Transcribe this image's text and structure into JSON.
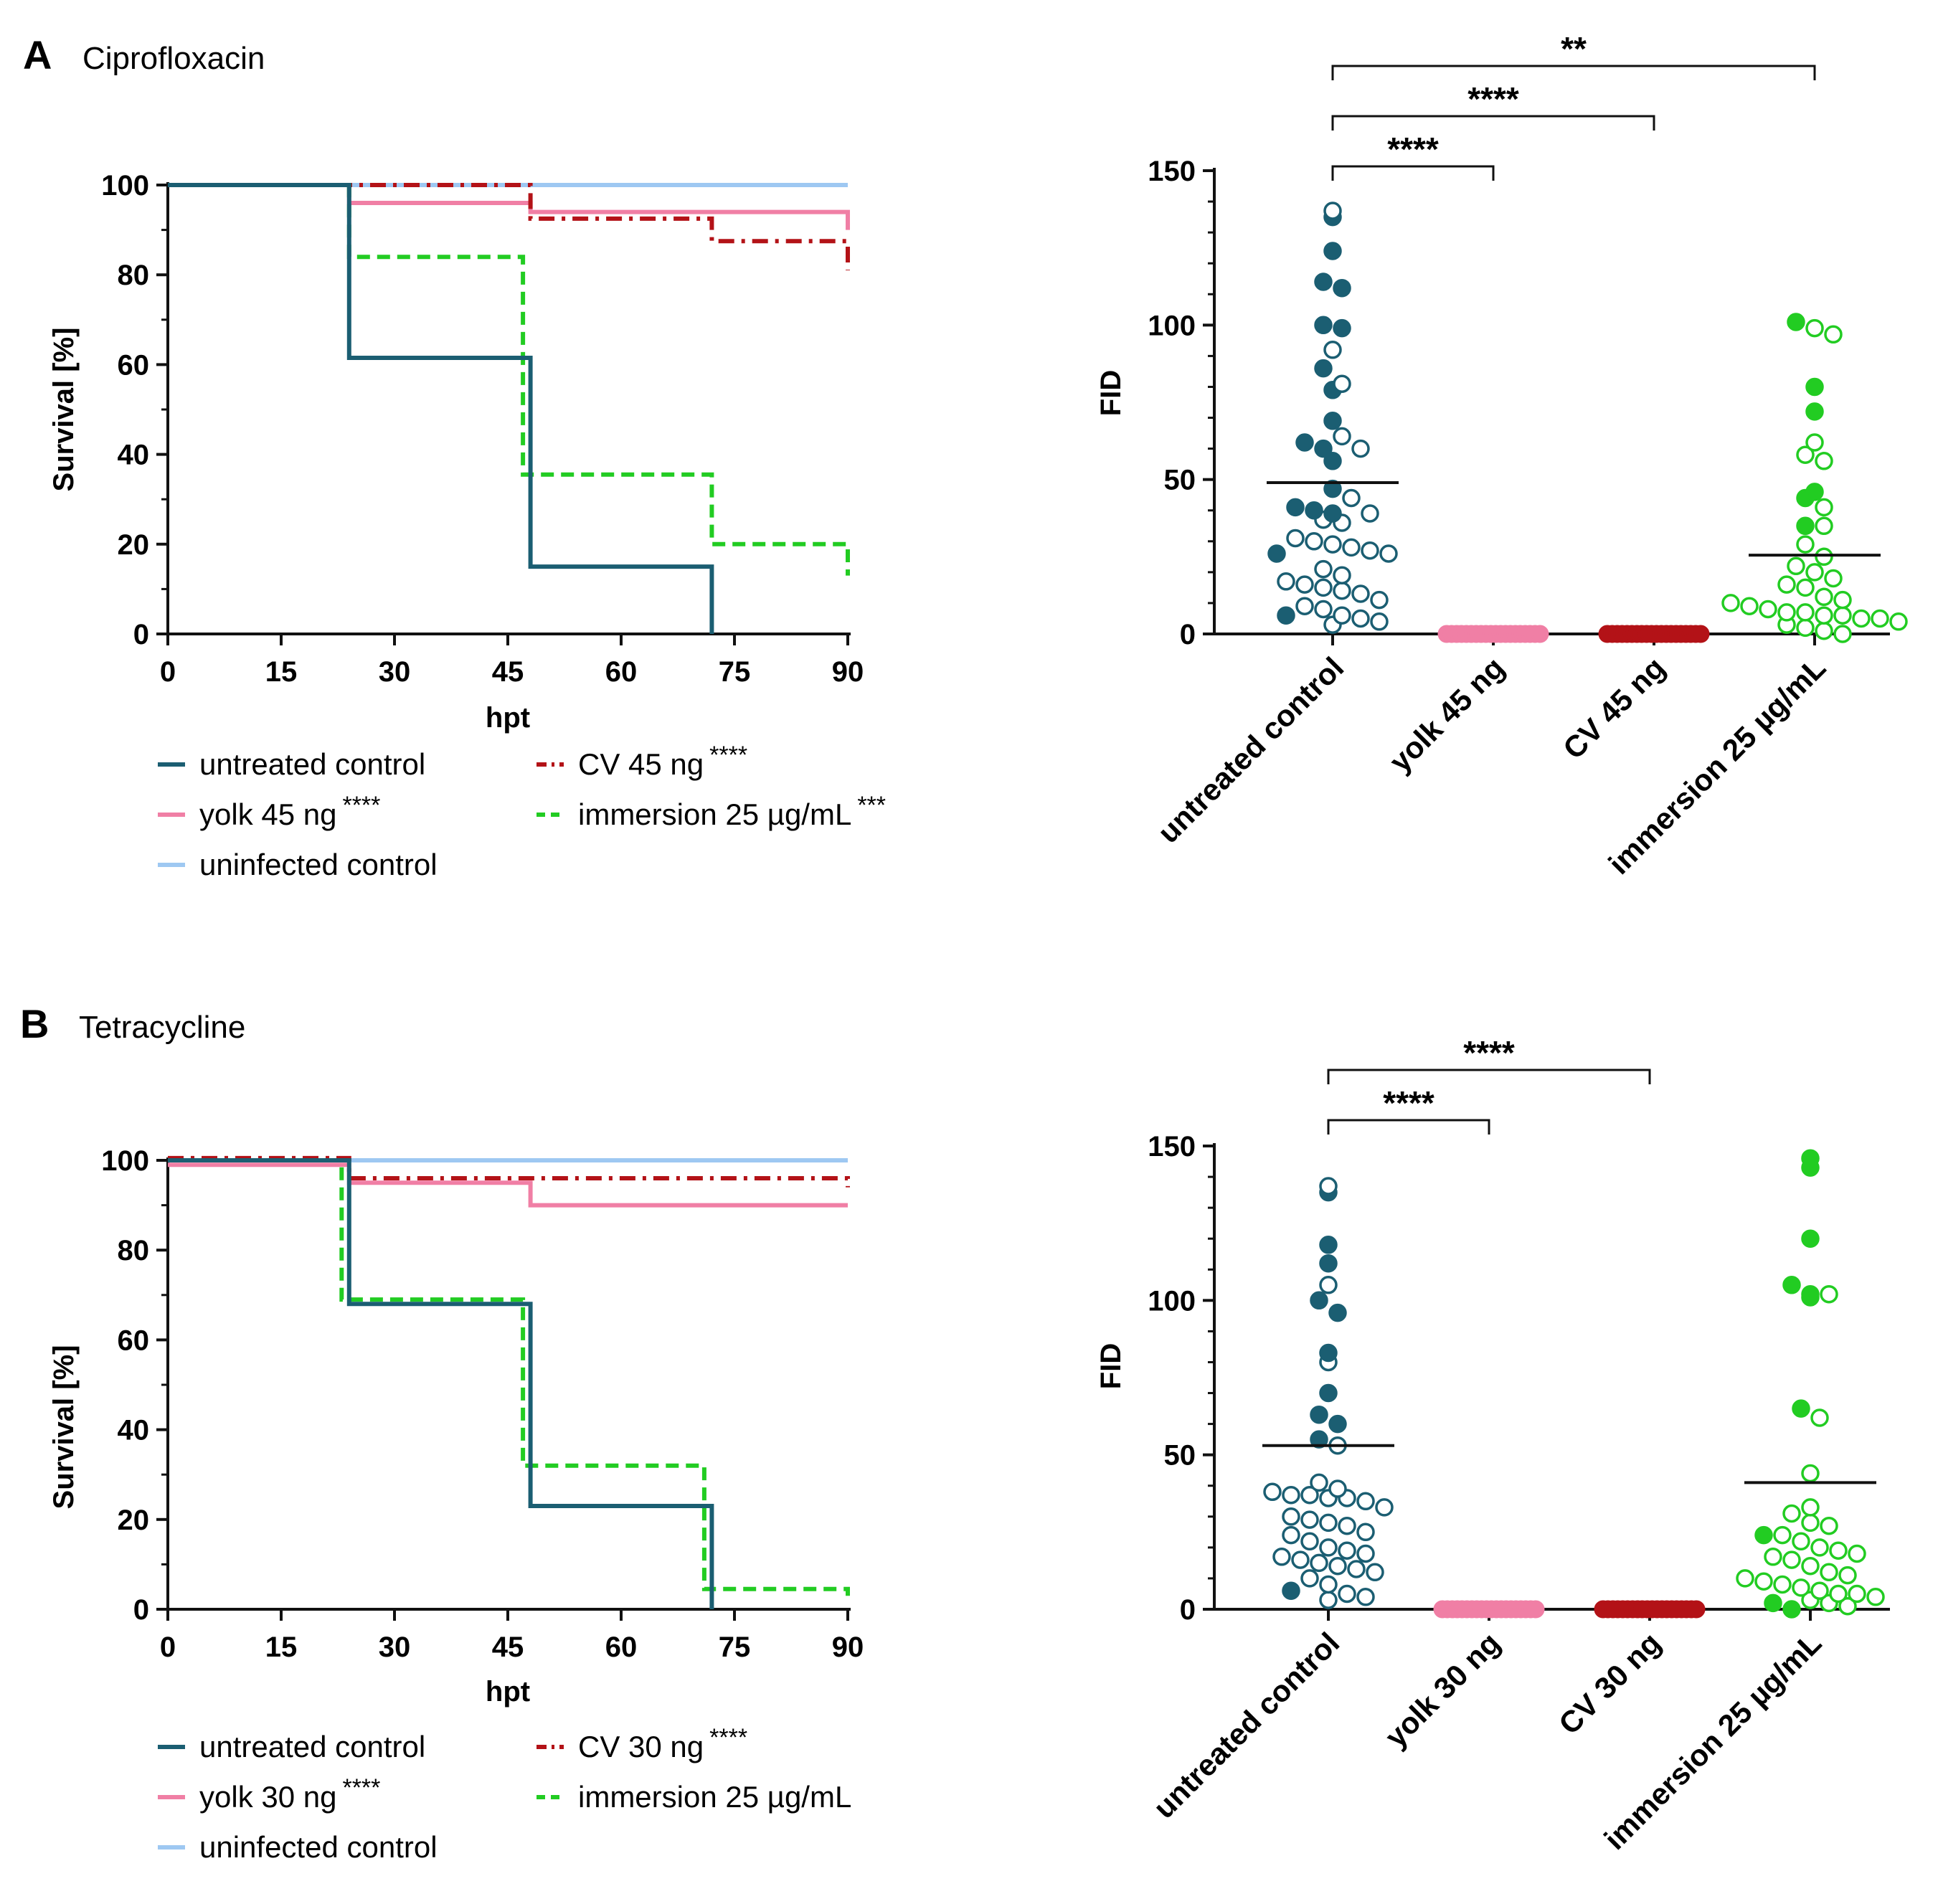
{
  "panels": [
    {
      "letter": "A",
      "title": "Ciprofloxacin",
      "survival": {
        "type": "line",
        "step": true,
        "xlabel": "hpt",
        "ylabel": "Survival [%]",
        "xlim": [
          0,
          90
        ],
        "ylim": [
          0,
          100
        ],
        "xticks": [
          0,
          15,
          30,
          45,
          60,
          75,
          90
        ],
        "yticks": [
          0,
          20,
          40,
          60,
          80,
          100
        ],
        "series": [
          {
            "name": "untreated control",
            "sig": "",
            "color": "#1b5e72",
            "dash": "solid",
            "x": [
              0,
              24,
              24,
              48,
              48,
              72,
              72
            ],
            "y": [
              100,
              100,
              61.5,
              61.5,
              15,
              15,
              0
            ]
          },
          {
            "name": "yolk 45 ng",
            "sig": "****",
            "color": "#f07fa5",
            "dash": "solid",
            "x": [
              0,
              24,
              24,
              48,
              48,
              90,
              90
            ],
            "y": [
              100,
              100,
              96,
              96,
              94,
              94,
              90
            ]
          },
          {
            "name": "uninfected control",
            "sig": "",
            "color": "#9ec8f2",
            "dash": "solid",
            "x": [
              0,
              90
            ],
            "y": [
              100,
              100
            ]
          },
          {
            "name": "CV 45 ng",
            "sig": "****",
            "color": "#b31217",
            "dash": "dashdot",
            "x": [
              0,
              48,
              48,
              72,
              72,
              90,
              90
            ],
            "y": [
              100,
              100,
              92.5,
              92.5,
              87.5,
              87.5,
              81
            ]
          },
          {
            "name": "immersion 25 µg/mL",
            "sig": "***",
            "color": "#22cc22",
            "dash": "dash",
            "x": [
              0,
              24,
              24,
              47,
              47,
              72,
              72,
              90,
              90
            ],
            "y": [
              100,
              100,
              84,
              84,
              35.5,
              35.5,
              20,
              20,
              13
            ]
          }
        ]
      },
      "fid": {
        "type": "scatter",
        "ylabel": "FID",
        "ylim": [
          0,
          150
        ],
        "yticks": [
          0,
          50,
          100,
          150
        ],
        "groups": [
          {
            "label": "untreated control",
            "color": "#1b5e72",
            "mean": 49,
            "filled": [
              135,
              124,
              114,
              112,
              100,
              99,
              86,
              79,
              69,
              62,
              60,
              56,
              47,
              41,
              40,
              39,
              26,
              6
            ],
            "open": [
              137,
              92,
              81,
              64,
              60,
              44,
              39,
              37,
              36,
              31,
              30,
              29,
              28,
              27,
              26,
              21,
              19,
              17,
              16,
              15,
              14,
              13,
              11,
              9,
              8,
              6,
              5,
              4,
              3
            ]
          },
          {
            "label": "yolk 45 ng",
            "color": "#f07fa5",
            "mean": 0,
            "filled": [
              0,
              0,
              0,
              0,
              0,
              0,
              0,
              0,
              0,
              0,
              0,
              0,
              0,
              0,
              0,
              0,
              0,
              0,
              0,
              0
            ],
            "open": []
          },
          {
            "label": "CV 45 ng",
            "color": "#b31217",
            "mean": 0,
            "filled": [
              0,
              0,
              0,
              0,
              0,
              0,
              0,
              0,
              0,
              0,
              0,
              0,
              0,
              0,
              0,
              0,
              0,
              0,
              0,
              0
            ],
            "open": []
          },
          {
            "label": "immersion 25 µg/mL",
            "color": "#22cc22",
            "mean": 25.5,
            "filled": [
              101,
              80,
              72,
              46,
              44,
              35
            ],
            "open": [
              99,
              97,
              62,
              58,
              56,
              41,
              35,
              29,
              25,
              22,
              20,
              18,
              16,
              15,
              12,
              11,
              10,
              9,
              8,
              7,
              7,
              6,
              6,
              5,
              5,
              4,
              3,
              2,
              1,
              0
            ]
          }
        ],
        "brackets": [
          {
            "from": 0,
            "to": 3,
            "label": "**"
          },
          {
            "from": 0,
            "to": 2,
            "label": "****"
          },
          {
            "from": 0,
            "to": 1,
            "label": "****"
          }
        ]
      }
    },
    {
      "letter": "B",
      "title": "Tetracycline",
      "survival": {
        "type": "line",
        "step": true,
        "xlabel": "hpt",
        "ylabel": "Survival [%]",
        "xlim": [
          0,
          90
        ],
        "ylim": [
          0,
          100
        ],
        "xticks": [
          0,
          15,
          30,
          45,
          60,
          75,
          90
        ],
        "yticks": [
          0,
          20,
          40,
          60,
          80,
          100
        ],
        "series": [
          {
            "name": "untreated control",
            "sig": "",
            "color": "#1b5e72",
            "dash": "solid",
            "x": [
              0,
              24,
              24,
              48,
              48,
              72,
              72
            ],
            "y": [
              100,
              100,
              68,
              68,
              23,
              23,
              0
            ]
          },
          {
            "name": "yolk 30 ng",
            "sig": "****",
            "color": "#f07fa5",
            "dash": "solid",
            "x": [
              0,
              24,
              24,
              48,
              48,
              90
            ],
            "y": [
              99,
              99,
              95,
              95,
              90,
              90
            ]
          },
          {
            "name": "uninfected control",
            "sig": "",
            "color": "#9ec8f2",
            "dash": "solid",
            "x": [
              0,
              90
            ],
            "y": [
              100,
              100
            ]
          },
          {
            "name": "CV 30 ng",
            "sig": "****",
            "color": "#b31217",
            "dash": "dashdot",
            "x": [
              0,
              24,
              24,
              90,
              90
            ],
            "y": [
              100.5,
              100.5,
              96,
              96,
              94
            ]
          },
          {
            "name": "immersion 25 µg/mL",
            "sig": "",
            "color": "#22cc22",
            "dash": "dash",
            "x": [
              0,
              23,
              23,
              47,
              47,
              71,
              71,
              90,
              90
            ],
            "y": [
              100,
              100,
              69,
              69,
              32,
              32,
              4.5,
              4.5,
              3
            ]
          }
        ]
      },
      "fid": {
        "type": "scatter",
        "ylabel": "FID",
        "ylim": [
          0,
          150
        ],
        "yticks": [
          0,
          50,
          100,
          150
        ],
        "groups": [
          {
            "label": "untreated control",
            "color": "#1b5e72",
            "mean": 53,
            "filled": [
              135,
              118,
              112,
              100,
              96,
              83,
              70,
              63,
              60,
              55,
              6
            ],
            "open": [
              137,
              105,
              80,
              53,
              41,
              39,
              38,
              37,
              37,
              36,
              36,
              35,
              33,
              30,
              29,
              28,
              27,
              25,
              24,
              22,
              20,
              19,
              18,
              17,
              16,
              15,
              14,
              13,
              12,
              10,
              8,
              5,
              4,
              3
            ]
          },
          {
            "label": "yolk 30 ng",
            "color": "#f07fa5",
            "mean": 0,
            "filled": [
              0,
              0,
              0,
              0,
              0,
              0,
              0,
              0,
              0,
              0,
              0,
              0,
              0,
              0,
              0,
              0,
              0,
              0,
              0,
              0
            ],
            "open": []
          },
          {
            "label": "CV 30 ng",
            "color": "#b31217",
            "mean": 0,
            "filled": [
              0,
              0,
              0,
              0,
              0,
              0,
              0,
              0,
              0,
              0,
              0,
              0,
              0,
              0,
              0,
              0,
              0,
              0,
              0,
              0
            ],
            "open": []
          },
          {
            "label": "immersion 25 µg/mL",
            "color": "#22cc22",
            "mean": 41,
            "filled": [
              146,
              143,
              120,
              105,
              102,
              101,
              65,
              24,
              2,
              0
            ],
            "open": [
              102,
              62,
              44,
              33,
              31,
              28,
              27,
              24,
              22,
              20,
              19,
              18,
              17,
              16,
              14,
              12,
              11,
              10,
              9,
              8,
              7,
              6,
              5,
              5,
              4,
              3,
              2,
              1
            ]
          }
        ],
        "brackets": [
          {
            "from": 0,
            "to": 2,
            "label": "****"
          },
          {
            "from": 0,
            "to": 1,
            "label": "****"
          }
        ]
      }
    }
  ]
}
